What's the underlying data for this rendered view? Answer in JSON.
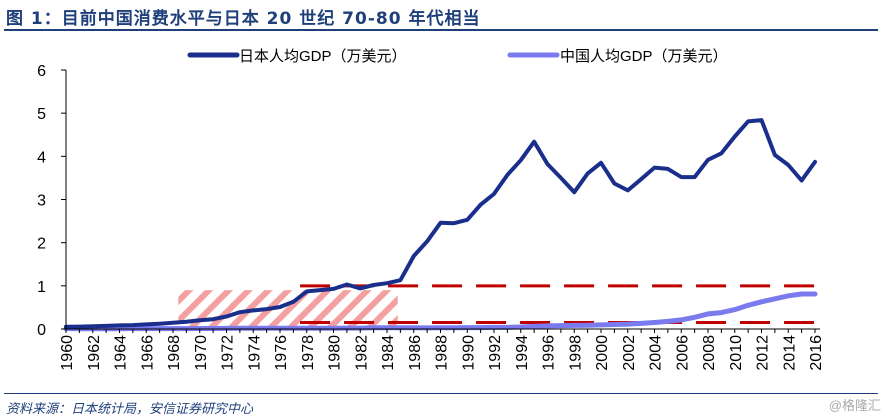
{
  "title": "图 1：目前中国消费水平与日本 20 世纪 70-80 年代相当",
  "source": "资料来源：日本统计局，安信证券研究中心",
  "watermark": "@格隆汇",
  "chart_data": {
    "type": "line",
    "title": "",
    "xlabel": "",
    "ylabel": "",
    "ylim": [
      0,
      6
    ],
    "yticks": [
      "0",
      "1",
      "2",
      "3",
      "4",
      "5",
      "6"
    ],
    "xlim": [
      1960,
      2016
    ],
    "x": [
      1960,
      1961,
      1962,
      1963,
      1964,
      1965,
      1966,
      1967,
      1968,
      1969,
      1970,
      1971,
      1972,
      1973,
      1974,
      1975,
      1976,
      1977,
      1978,
      1979,
      1980,
      1981,
      1982,
      1983,
      1984,
      1985,
      1986,
      1987,
      1988,
      1989,
      1990,
      1991,
      1992,
      1993,
      1994,
      1995,
      1996,
      1997,
      1998,
      1999,
      2000,
      2001,
      2002,
      2003,
      2004,
      2005,
      2006,
      2007,
      2008,
      2009,
      2010,
      2011,
      2012,
      2013,
      2014,
      2015,
      2016
    ],
    "xtick_labels": [
      "1960",
      "1962",
      "1964",
      "1966",
      "1968",
      "1970",
      "1972",
      "1974",
      "1976",
      "1978",
      "1980",
      "1982",
      "1984",
      "1986",
      "1988",
      "1990",
      "1992",
      "1994",
      "1996",
      "1998",
      "2000",
      "2002",
      "2004",
      "2006",
      "2008",
      "2010",
      "2012",
      "2014",
      "2016"
    ],
    "legend_position": "top",
    "series": [
      {
        "name": "日本人均GDP（万美元）",
        "color": "#1a2f8c",
        "values": [
          0.05,
          0.056,
          0.063,
          0.072,
          0.083,
          0.091,
          0.106,
          0.123,
          0.145,
          0.17,
          0.204,
          0.227,
          0.29,
          0.39,
          0.43,
          0.46,
          0.51,
          0.63,
          0.87,
          0.9,
          0.93,
          1.03,
          0.94,
          1.02,
          1.06,
          1.13,
          1.69,
          2.03,
          2.46,
          2.45,
          2.53,
          2.88,
          3.13,
          3.57,
          3.91,
          4.34,
          3.82,
          3.5,
          3.17,
          3.6,
          3.85,
          3.37,
          3.21,
          3.47,
          3.74,
          3.71,
          3.52,
          3.52,
          3.92,
          4.07,
          4.46,
          4.81,
          4.84,
          4.03,
          3.8,
          3.44,
          3.87
        ]
      },
      {
        "name": "中国人均GDP（万美元）",
        "color": "#7b7bf0",
        "values": [
          0.009,
          0.008,
          0.007,
          0.007,
          0.008,
          0.01,
          0.01,
          0.009,
          0.009,
          0.01,
          0.011,
          0.012,
          0.013,
          0.016,
          0.016,
          0.018,
          0.017,
          0.018,
          0.016,
          0.018,
          0.019,
          0.02,
          0.02,
          0.03,
          0.03,
          0.029,
          0.028,
          0.025,
          0.028,
          0.031,
          0.032,
          0.033,
          0.037,
          0.038,
          0.047,
          0.061,
          0.071,
          0.078,
          0.083,
          0.086,
          0.096,
          0.105,
          0.114,
          0.129,
          0.151,
          0.175,
          0.21,
          0.27,
          0.35,
          0.38,
          0.45,
          0.55,
          0.63,
          0.7,
          0.77,
          0.81,
          0.81
        ]
      }
    ],
    "annotations": [
      {
        "type": "hatched-region",
        "x": [
          1968.4,
          1984.8
        ],
        "y": [
          0,
          0.9
        ],
        "color": "#f08080"
      },
      {
        "type": "dashed-line",
        "y": 1.0,
        "x": [
          1977.5,
          2016
        ],
        "color": "#c00000"
      },
      {
        "type": "dashed-line",
        "y": 0.15,
        "x": [
          1977.5,
          2016
        ],
        "color": "#c00000"
      }
    ]
  }
}
